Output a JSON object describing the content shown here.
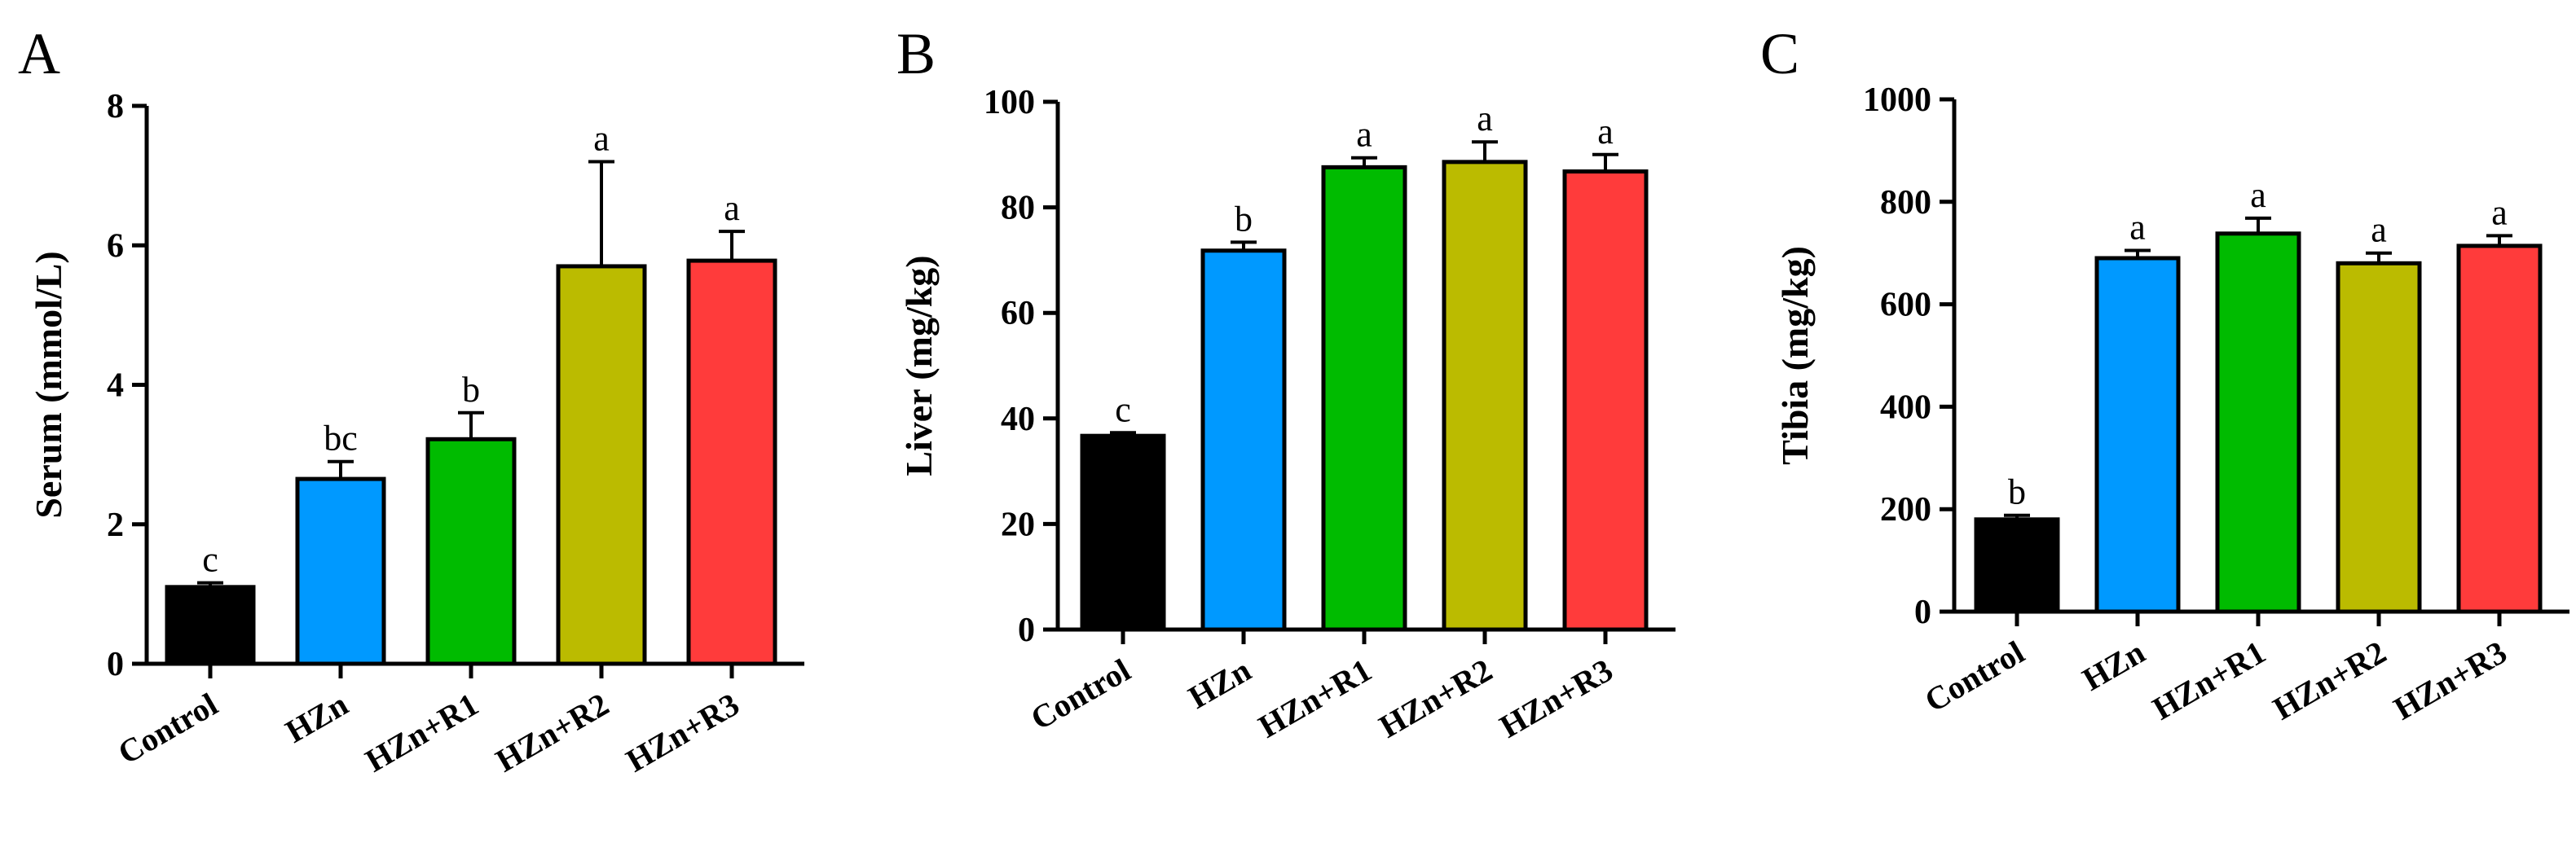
{
  "chart_data": [
    {
      "type": "bar",
      "panel": "A",
      "title": "",
      "xlabel": "",
      "ylabel": "Serum (mmol/L)",
      "ylim": [
        0,
        8
      ],
      "yticks": [
        "0",
        "2",
        "4",
        "6",
        "8"
      ],
      "grid": false,
      "categories": [
        "Control",
        "HZn",
        "HZn+R1",
        "HZn+R2",
        "HZn+R3"
      ],
      "values": [
        1.1,
        2.65,
        3.22,
        5.7,
        5.78
      ],
      "errors": [
        0.06,
        0.25,
        0.38,
        1.5,
        0.42
      ],
      "annotations": [
        "c",
        "bc",
        "b",
        "a",
        "a"
      ],
      "colors": [
        "#000000",
        "#0099ff",
        "#00bb00",
        "#bbbb00",
        "#ff3b3b"
      ]
    },
    {
      "type": "bar",
      "panel": "B",
      "title": "",
      "xlabel": "",
      "ylabel": "Liver (mg/kg)",
      "ylim": [
        0,
        100
      ],
      "yticks": [
        "0",
        "20",
        "40",
        "60",
        "80",
        "100"
      ],
      "grid": false,
      "categories": [
        "Control",
        "HZn",
        "HZn+R1",
        "HZn+R2",
        "HZn+R3"
      ],
      "values": [
        36.7,
        71.8,
        87.6,
        88.6,
        86.8
      ],
      "errors": [
        0.6,
        1.6,
        1.8,
        3.8,
        3.2
      ],
      "annotations": [
        "c",
        "b",
        "a",
        "a",
        "a"
      ],
      "colors": [
        "#000000",
        "#0099ff",
        "#00bb00",
        "#bbbb00",
        "#ff3b3b"
      ]
    },
    {
      "type": "bar",
      "panel": "C",
      "title": "",
      "xlabel": "",
      "ylabel": "Tibia (mg/kg)",
      "ylim": [
        0,
        1000
      ],
      "yticks": [
        "0",
        "200",
        "400",
        "600",
        "800",
        "1000"
      ],
      "grid": false,
      "categories": [
        "Control",
        "HZn",
        "HZn+R1",
        "HZn+R2",
        "HZn+R3"
      ],
      "values": [
        180,
        690,
        738,
        680,
        714
      ],
      "errors": [
        8,
        15,
        30,
        20,
        20
      ],
      "annotations": [
        "b",
        "a",
        "a",
        "a",
        "a"
      ],
      "colors": [
        "#000000",
        "#0099ff",
        "#00bb00",
        "#bbbb00",
        "#ff3b3b"
      ]
    }
  ]
}
